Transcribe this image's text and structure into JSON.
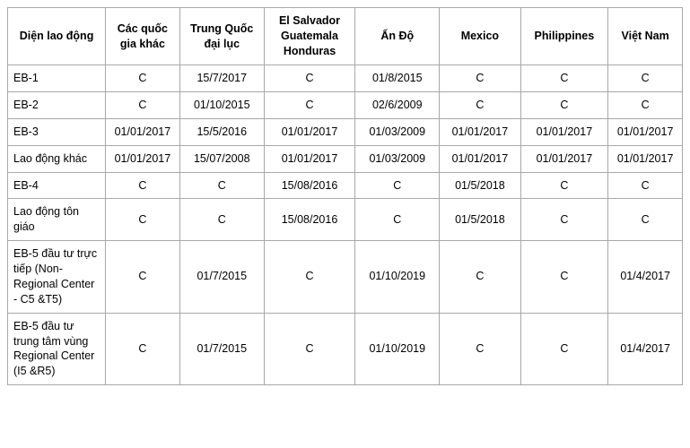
{
  "table": {
    "columns": [
      "Diện lao động",
      "Các quốc gia khác",
      "Trung Quốc đại lục",
      "El Salvador\nGuatemala\nHonduras",
      "Ấn Độ",
      "Mexico",
      "Philippines",
      "Việt Nam"
    ],
    "rows": [
      {
        "label": "EB-1",
        "cells": [
          "C",
          "15/7/2017",
          "C",
          "01/8/2015",
          "C",
          "C",
          "C"
        ]
      },
      {
        "label": "EB-2",
        "cells": [
          "C",
          "01/10/2015",
          "C",
          "02/6/2009",
          "C",
          "C",
          "C"
        ]
      },
      {
        "label": "EB-3",
        "cells": [
          "01/01/2017",
          "15/5/2016",
          "01/01/2017",
          "01/03/2009",
          "01/01/2017",
          "01/01/2017",
          "01/01/2017"
        ]
      },
      {
        "label": "Lao động khác",
        "cells": [
          "01/01/2017",
          "15/07/2008",
          "01/01/2017",
          "01/03/2009",
          "01/01/2017",
          "01/01/2017",
          "01/01/2017"
        ]
      },
      {
        "label": "EB-4",
        "cells": [
          "C",
          "C",
          "15/08/2016",
          "C",
          "01/5/2018",
          "C",
          "C"
        ]
      },
      {
        "label": "Lao động tôn giáo",
        "cells": [
          "C",
          "C",
          "15/08/2016",
          "C",
          "01/5/2018",
          "C",
          "C"
        ]
      },
      {
        "label": "EB-5 đầu tư trực tiếp (Non-Regional Center - C5 &T5)",
        "tall": true,
        "cells": [
          "C",
          "01/7/2015",
          "C",
          "01/10/2019",
          "C",
          "C",
          "01/4/2017"
        ]
      },
      {
        "label": "EB-5 đầu tư trung tâm vùng Regional Center (I5 &R5)",
        "tall": true,
        "cells": [
          "C",
          "01/7/2015",
          "C",
          "01/10/2019",
          "C",
          "C",
          "01/4/2017"
        ]
      }
    ],
    "border_color": "#a8a8a8",
    "background_color": "#ffffff",
    "header_fontsize": 12.5,
    "cell_fontsize": 12.5
  }
}
